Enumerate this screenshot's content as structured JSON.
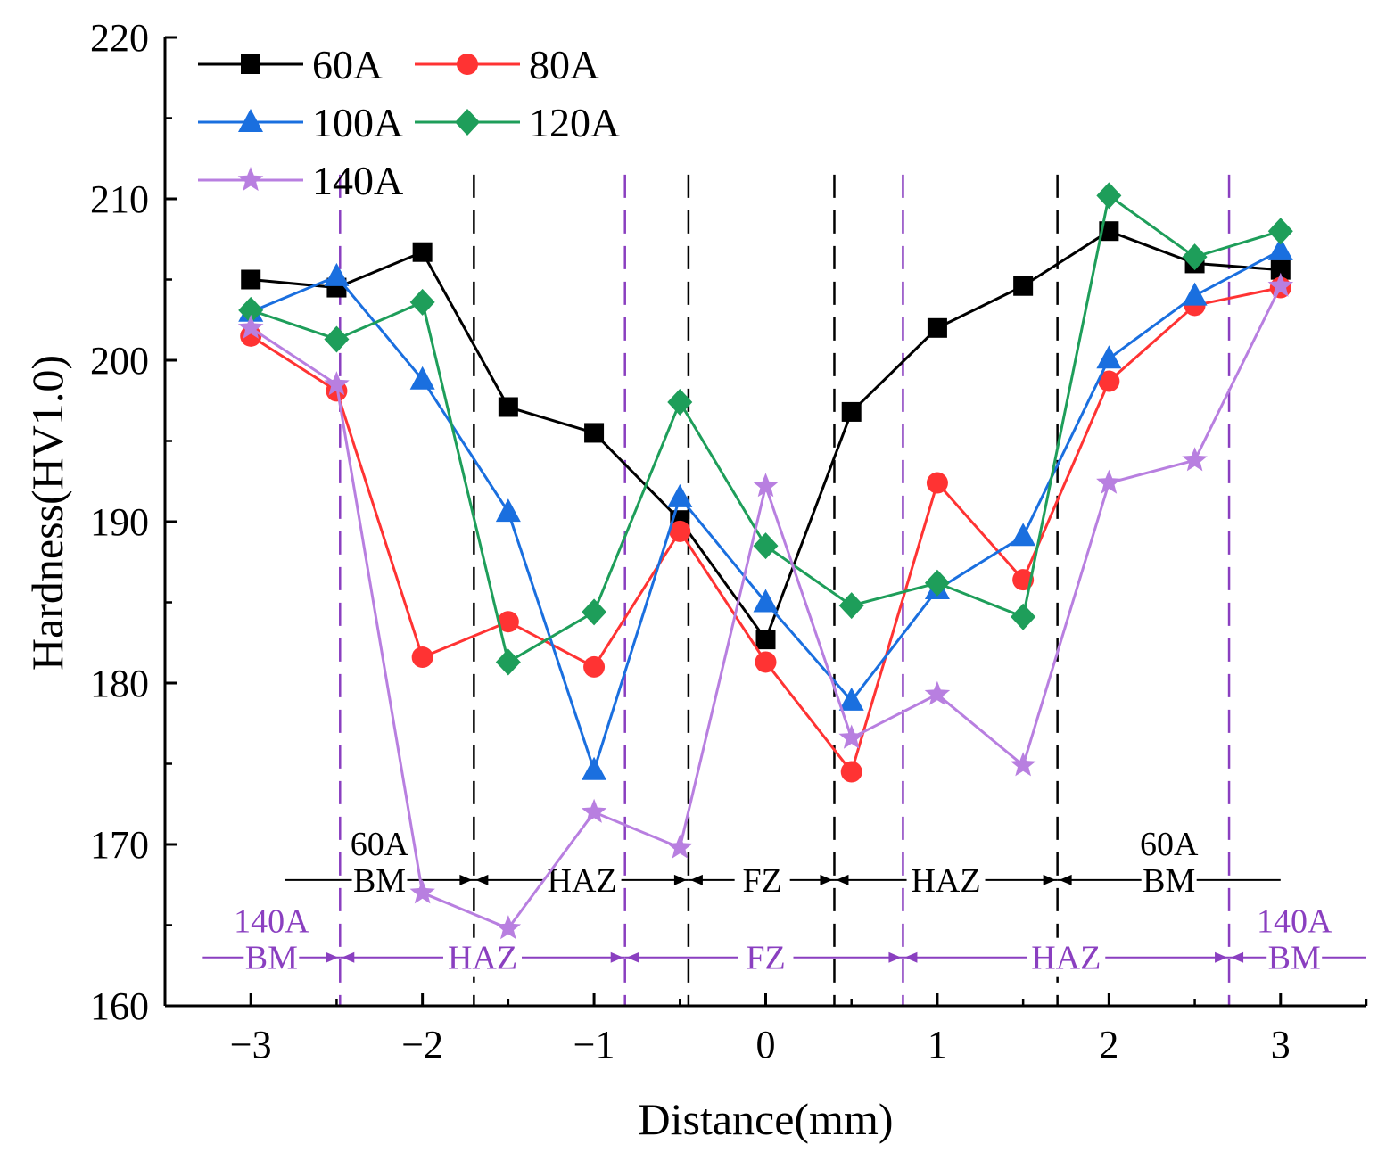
{
  "chart_data": {
    "type": "line",
    "title": "",
    "xlabel": "Distance(mm)",
    "ylabel": "Hardness(HV1.0)",
    "xlim": [
      -3.5,
      3.5
    ],
    "ylim": [
      160,
      220
    ],
    "x_ticks": [
      -3,
      -2,
      -1,
      0,
      1,
      2,
      3
    ],
    "x_tick_labels": [
      "−3",
      "−2",
      "−1",
      "0",
      "1",
      "2",
      "3"
    ],
    "y_ticks": [
      160,
      170,
      180,
      190,
      200,
      210,
      220
    ],
    "y_tick_labels": [
      "160",
      "170",
      "180",
      "190",
      "200",
      "210",
      "220"
    ],
    "grid": false,
    "legend_position": "top-left",
    "x": [
      -3,
      -2.5,
      -2,
      -1.5,
      -1,
      -0.5,
      0,
      0.5,
      1,
      1.5,
      2,
      2.5,
      3
    ],
    "series": [
      {
        "name": "60A",
        "color": "#000000",
        "marker": "square",
        "values": [
          205.0,
          204.5,
          206.7,
          197.1,
          195.5,
          190.1,
          182.7,
          196.8,
          202.0,
          204.6,
          208.0,
          206.0,
          205.6
        ]
      },
      {
        "name": "80A",
        "color": "#ff3333",
        "marker": "circle",
        "values": [
          201.5,
          198.1,
          181.6,
          183.8,
          181.0,
          189.4,
          181.3,
          174.5,
          192.4,
          186.4,
          198.7,
          203.4,
          204.5
        ]
      },
      {
        "name": "100A",
        "color": "#1a6fdf",
        "marker": "triangle",
        "values": [
          203.0,
          205.2,
          198.8,
          190.6,
          174.6,
          191.5,
          185.0,
          178.9,
          185.8,
          189.1,
          200.1,
          204.0,
          206.8
        ]
      },
      {
        "name": "120A",
        "color": "#1e9e5a",
        "marker": "diamond",
        "values": [
          203.1,
          201.3,
          203.6,
          181.3,
          184.4,
          197.4,
          188.5,
          184.8,
          186.2,
          184.1,
          210.2,
          206.4,
          208.0
        ]
      },
      {
        "name": "140A",
        "color": "#b87fe0",
        "marker": "star",
        "values": [
          202.0,
          198.5,
          167.0,
          164.8,
          172.0,
          169.8,
          192.2,
          176.6,
          179.3,
          174.9,
          192.4,
          193.8,
          204.6
        ]
      }
    ],
    "zone_lines": [
      {
        "group": "60A",
        "color": "#000000",
        "x": [
          -1.7,
          -0.45,
          0.4,
          1.7
        ]
      },
      {
        "group": "140A",
        "color": "#8a3fc0",
        "x": [
          -2.48,
          -0.82,
          0.8,
          2.7
        ]
      }
    ],
    "zone_annotations": {
      "row_60A": {
        "color": "#000000",
        "arrow_y": 167.8,
        "extent": [
          -2.8,
          3.0
        ],
        "boundaries": [
          -1.7,
          -0.45,
          0.4,
          1.7
        ],
        "labels": [
          {
            "text": "BM",
            "x": -2.25,
            "top": "60A"
          },
          {
            "text": "HAZ",
            "x": -1.07
          },
          {
            "text": "FZ",
            "x": -0.02
          },
          {
            "text": "HAZ",
            "x": 1.05
          },
          {
            "text": "BM",
            "x": 2.35,
            "top": "60A"
          }
        ]
      },
      "row_140A": {
        "color": "#8a3fc0",
        "arrow_y": 163.0,
        "extent": [
          -3.28,
          3.5
        ],
        "boundaries": [
          -2.48,
          -0.82,
          0.8,
          2.7
        ],
        "labels": [
          {
            "text": "BM",
            "x": -2.88,
            "top": "140A"
          },
          {
            "text": "HAZ",
            "x": -1.65
          },
          {
            "text": "FZ",
            "x": 0.0
          },
          {
            "text": "HAZ",
            "x": 1.75
          },
          {
            "text": "BM",
            "x": 3.08,
            "top": "140A"
          }
        ]
      }
    }
  }
}
